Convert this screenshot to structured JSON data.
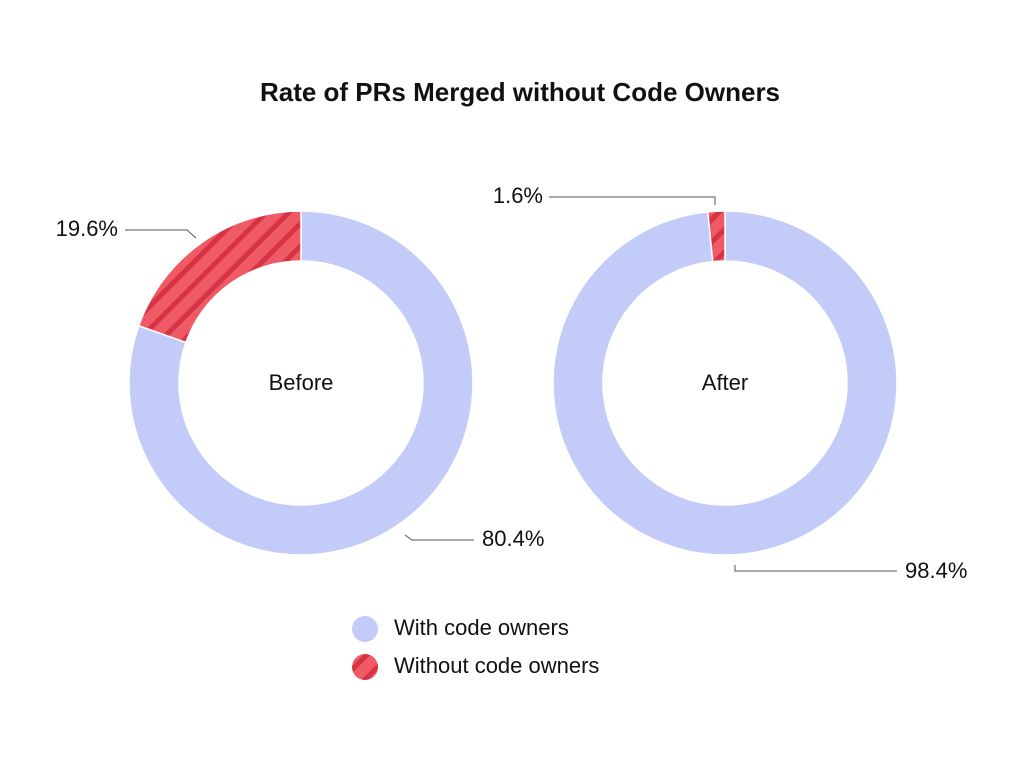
{
  "title": "Rate of PRs Merged without Code Owners",
  "categories": [
    "With code owners",
    "Without code owners"
  ],
  "colors": [
    "#c3cbf8",
    "#ef5a66"
  ],
  "chart_data": [
    {
      "type": "pie",
      "label": "Before",
      "values": [
        80.4,
        19.6
      ],
      "value_labels": [
        "80.4%",
        "19.6%"
      ]
    },
    {
      "type": "pie",
      "label": "After",
      "values": [
        98.4,
        1.6
      ],
      "value_labels": [
        "98.4%",
        "1.6%"
      ]
    }
  ]
}
